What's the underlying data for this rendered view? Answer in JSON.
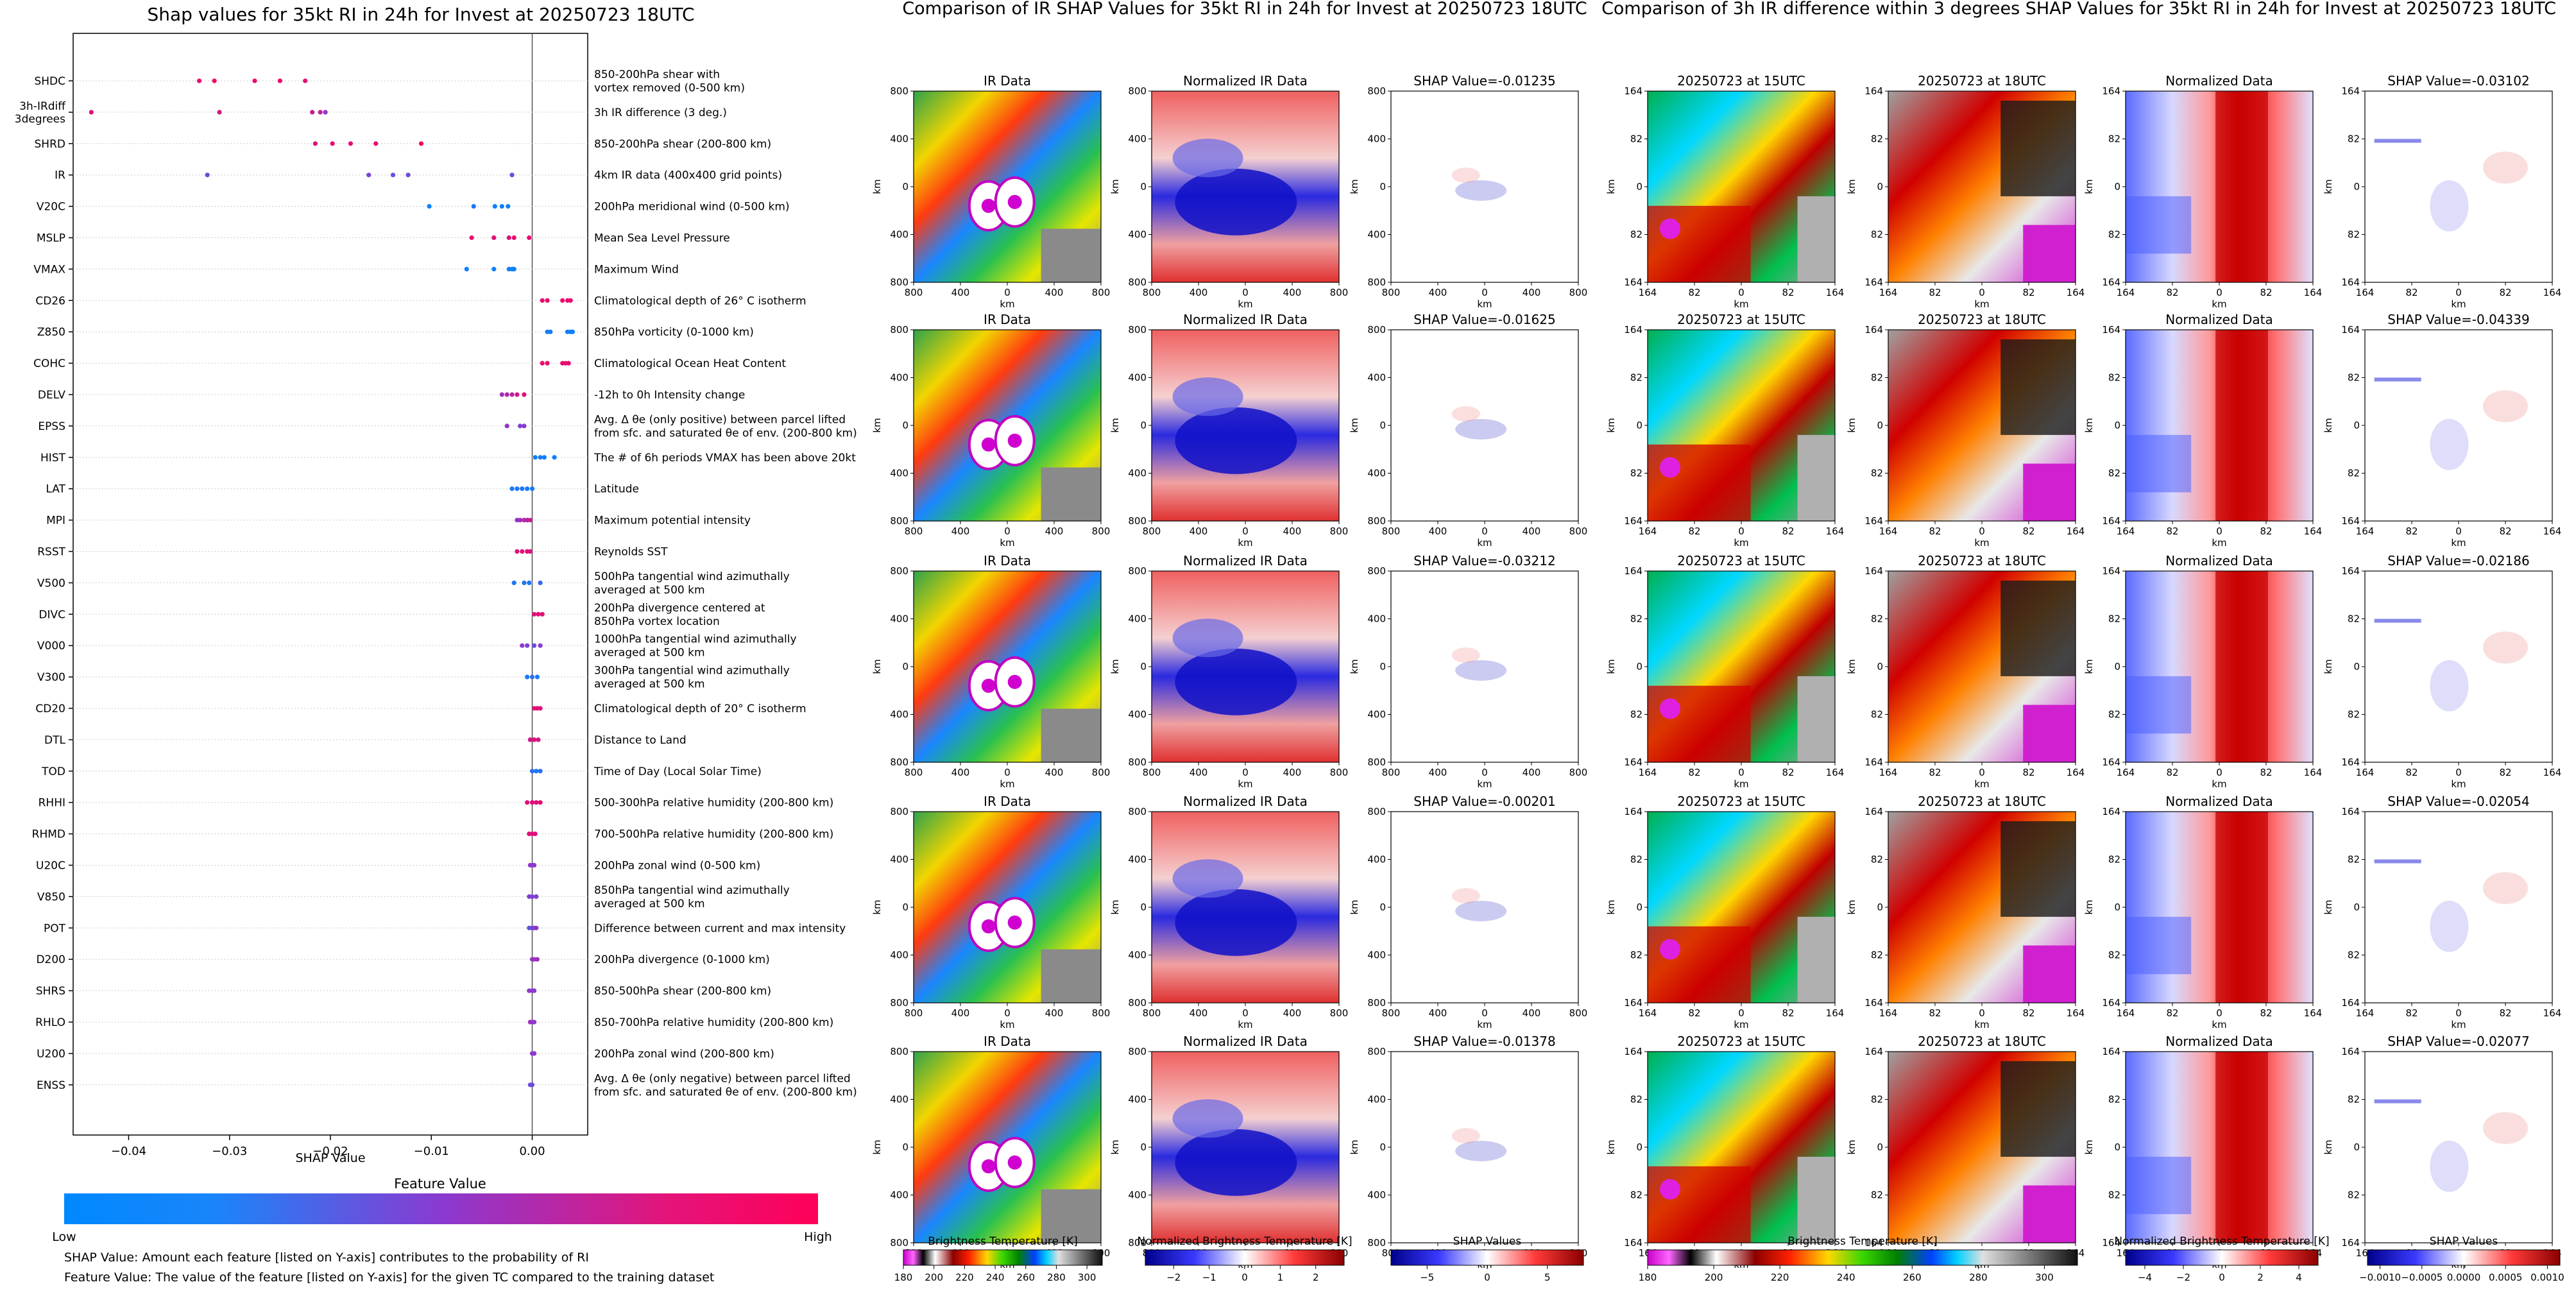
{
  "beeswarm": {
    "title": "Shap values for 35kt RI in 24h for Invest at 20250723 18UTC",
    "xlabel": "SHAP Value",
    "xlim": [
      -0.0455,
      0.0055
    ],
    "x_ticks": [
      "−0.04",
      "−0.03",
      "−0.02",
      "−0.01",
      "0.00"
    ],
    "colorbar_title": "Feature Value",
    "colorbar_low": "Low",
    "colorbar_high": "High",
    "note1": "SHAP Value: Amount each feature [listed on Y-axis] contributes to the probability of RI",
    "note2": "Feature Value: The value of the feature [listed on Y-axis] for the given TC compared to the training dataset"
  },
  "chart_data": [
    {
      "type": "scatter",
      "title": "Shap values for 35kt RI in 24h for Invest at 20250723 18UTC",
      "xlabel": "SHAP Value",
      "xlim": [
        -0.0455,
        0.0055
      ],
      "legend": "colorbar bottom: Feature Value, Low (blue) to High (pink)",
      "rows": [
        {
          "feature": "SHDC",
          "desc": [
            "850-200hPa shear with",
            "vortex removed (0-500 km)"
          ],
          "points": [
            [
              -0.033,
              0.9
            ],
            [
              -0.0315,
              0.95
            ],
            [
              -0.0275,
              0.9
            ],
            [
              -0.025,
              0.92
            ],
            [
              -0.0225,
              0.88
            ]
          ]
        },
        {
          "feature": "3h-IRdiff\n3degrees",
          "desc": [
            "3h IR difference (3 deg.)"
          ],
          "points": [
            [
              -0.0437,
              0.85
            ],
            [
              -0.031,
              0.8
            ],
            [
              -0.0218,
              0.75
            ],
            [
              -0.021,
              0.7
            ],
            [
              -0.0205,
              0.55
            ]
          ]
        },
        {
          "feature": "SHRD",
          "desc": [
            "850-200hPa shear (200-800 km)"
          ],
          "points": [
            [
              -0.0215,
              0.85
            ],
            [
              -0.0198,
              0.9
            ],
            [
              -0.018,
              0.88
            ],
            [
              -0.0155,
              0.9
            ],
            [
              -0.011,
              0.95
            ]
          ]
        },
        {
          "feature": "IR",
          "desc": [
            "4km IR data (400x400 grid points)"
          ],
          "points": [
            [
              -0.0322,
              0.4
            ],
            [
              -0.0162,
              0.45
            ],
            [
              -0.0138,
              0.35
            ],
            [
              -0.0123,
              0.4
            ],
            [
              -0.002,
              0.4
            ]
          ]
        },
        {
          "feature": "V20C",
          "desc": [
            "200hPa meridional wind (0-500 km)"
          ],
          "points": [
            [
              -0.0102,
              0.05
            ],
            [
              -0.0058,
              0.1
            ],
            [
              -0.0037,
              0.05
            ],
            [
              -0.003,
              0.05
            ],
            [
              -0.0024,
              0.05
            ]
          ]
        },
        {
          "feature": "MSLP",
          "desc": [
            "Mean Sea Level Pressure"
          ],
          "points": [
            [
              -0.006,
              0.9
            ],
            [
              -0.0038,
              0.88
            ],
            [
              -0.0023,
              0.85
            ],
            [
              -0.0018,
              0.9
            ],
            [
              -0.0003,
              0.88
            ]
          ]
        },
        {
          "feature": "VMAX",
          "desc": [
            "Maximum Wind"
          ],
          "points": [
            [
              -0.0065,
              0.05
            ],
            [
              -0.0038,
              0.05
            ],
            [
              -0.0023,
              0.05
            ],
            [
              -0.002,
              0.05
            ],
            [
              -0.0018,
              0.05
            ]
          ]
        },
        {
          "feature": "CD26",
          "desc": [
            "Climatological depth of 26° C isotherm"
          ],
          "points": [
            [
              0.001,
              0.92
            ],
            [
              0.0015,
              0.9
            ],
            [
              0.003,
              0.95
            ],
            [
              0.0035,
              0.92
            ],
            [
              0.0038,
              0.9
            ]
          ]
        },
        {
          "feature": "Z850",
          "desc": [
            "850hPa vorticity (0-1000 km)"
          ],
          "points": [
            [
              0.0015,
              0.05
            ],
            [
              0.0018,
              0.08
            ],
            [
              0.0035,
              0.05
            ],
            [
              0.0038,
              0.05
            ],
            [
              0.004,
              0.05
            ]
          ]
        },
        {
          "feature": "COHC",
          "desc": [
            "Climatological Ocean Heat Content"
          ],
          "points": [
            [
              0.001,
              0.92
            ],
            [
              0.0015,
              0.9
            ],
            [
              0.003,
              0.92
            ],
            [
              0.0033,
              0.88
            ],
            [
              0.0036,
              0.9
            ]
          ]
        },
        {
          "feature": "DELV",
          "desc": [
            "-12h to 0h Intensity change"
          ],
          "points": [
            [
              -0.003,
              0.6
            ],
            [
              -0.0025,
              0.65
            ],
            [
              -0.002,
              0.7
            ],
            [
              -0.0015,
              0.8
            ],
            [
              -0.0008,
              0.9
            ]
          ]
        },
        {
          "feature": "EPSS",
          "desc": [
            "Avg. Δ θe (only positive) between parcel lifted",
            "from sfc. and saturated θe of env. (200-800 km)"
          ],
          "points": [
            [
              -0.0025,
              0.55
            ],
            [
              -0.0012,
              0.45
            ],
            [
              -0.0008,
              0.5
            ]
          ]
        },
        {
          "feature": "HIST",
          "desc": [
            "The # of 6h periods VMAX has been above 20kt"
          ],
          "points": [
            [
              0.0003,
              0.05
            ],
            [
              0.0008,
              0.08
            ],
            [
              0.0012,
              0.05
            ],
            [
              0.0022,
              0.05
            ]
          ]
        },
        {
          "feature": "LAT",
          "desc": [
            "Latitude"
          ],
          "points": [
            [
              -0.002,
              0.1
            ],
            [
              -0.0015,
              0.12
            ],
            [
              -0.001,
              0.1
            ],
            [
              -0.0005,
              0.08
            ],
            [
              0.0,
              0.1
            ]
          ]
        },
        {
          "feature": "MPI",
          "desc": [
            "Maximum potential intensity"
          ],
          "points": [
            [
              -0.0015,
              0.55
            ],
            [
              -0.0012,
              0.6
            ],
            [
              -0.0008,
              0.65
            ],
            [
              -0.0005,
              0.7
            ],
            [
              -0.0002,
              0.75
            ]
          ]
        },
        {
          "feature": "RSST",
          "desc": [
            "Reynolds SST"
          ],
          "points": [
            [
              -0.0015,
              0.85
            ],
            [
              -0.001,
              0.88
            ],
            [
              -0.0005,
              0.9
            ],
            [
              -0.0002,
              0.85
            ]
          ]
        },
        {
          "feature": "V500",
          "desc": [
            "500hPa tangential wind azimuthally",
            "averaged at 500 km"
          ],
          "points": [
            [
              -0.0018,
              0.1
            ],
            [
              -0.0008,
              0.15
            ],
            [
              -0.0003,
              0.1
            ],
            [
              0.0008,
              0.2
            ]
          ]
        },
        {
          "feature": "DIVC",
          "desc": [
            "200hPa divergence centered at",
            "850hPa vortex location"
          ],
          "points": [
            [
              0.0002,
              0.85
            ],
            [
              0.0006,
              0.9
            ],
            [
              0.001,
              0.85
            ]
          ]
        },
        {
          "feature": "V000",
          "desc": [
            "1000hPa tangential wind azimuthally",
            "averaged at 500 km"
          ],
          "points": [
            [
              -0.001,
              0.5
            ],
            [
              -0.0005,
              0.45
            ],
            [
              0.0002,
              0.4
            ],
            [
              0.0008,
              0.5
            ]
          ]
        },
        {
          "feature": "V300",
          "desc": [
            "300hPa tangential wind azimuthally",
            "averaged at 500 km"
          ],
          "points": [
            [
              -0.0005,
              0.1
            ],
            [
              0.0,
              0.15
            ],
            [
              0.0005,
              0.1
            ]
          ]
        },
        {
          "feature": "CD20",
          "desc": [
            "Climatological depth of 20° C isotherm"
          ],
          "points": [
            [
              0.0002,
              0.85
            ],
            [
              0.0005,
              0.9
            ],
            [
              0.0008,
              0.85
            ]
          ]
        },
        {
          "feature": "DTL",
          "desc": [
            "Distance to Land"
          ],
          "points": [
            [
              -0.0002,
              0.8
            ],
            [
              0.0002,
              0.85
            ],
            [
              0.0006,
              0.8
            ]
          ]
        },
        {
          "feature": "TOD",
          "desc": [
            "Time of Day (Local Solar Time)"
          ],
          "points": [
            [
              0.0,
              0.15
            ],
            [
              0.0004,
              0.1
            ],
            [
              0.0008,
              0.15
            ]
          ]
        },
        {
          "feature": "RHHI",
          "desc": [
            "500-300hPa relative humidity (200-800 km)"
          ],
          "points": [
            [
              -0.0005,
              0.85
            ],
            [
              0.0,
              0.88
            ],
            [
              0.0004,
              0.85
            ],
            [
              0.0008,
              0.9
            ]
          ]
        },
        {
          "feature": "RHMD",
          "desc": [
            "700-500hPa relative humidity (200-800 km)"
          ],
          "points": [
            [
              -0.0003,
              0.85
            ],
            [
              0.0,
              0.88
            ],
            [
              0.0003,
              0.85
            ]
          ]
        },
        {
          "feature": "U20C",
          "desc": [
            "200hPa zonal wind (0-500 km)"
          ],
          "points": [
            [
              -0.0002,
              0.5
            ],
            [
              0.0,
              0.55
            ],
            [
              0.0002,
              0.5
            ]
          ]
        },
        {
          "feature": "V850",
          "desc": [
            "850hPa tangential wind azimuthally",
            "averaged at 500 km"
          ],
          "points": [
            [
              -0.0003,
              0.45
            ],
            [
              0.0,
              0.5
            ],
            [
              0.0004,
              0.45
            ]
          ]
        },
        {
          "feature": "POT",
          "desc": [
            "Difference between current and max intensity"
          ],
          "points": [
            [
              -0.0003,
              0.3
            ],
            [
              0.0,
              0.4
            ],
            [
              0.0002,
              0.55
            ],
            [
              0.0004,
              0.5
            ]
          ]
        },
        {
          "feature": "D200",
          "desc": [
            "200hPa divergence (0-1000 km)"
          ],
          "points": [
            [
              0.0,
              0.5
            ],
            [
              0.0002,
              0.55
            ],
            [
              0.0005,
              0.6
            ]
          ]
        },
        {
          "feature": "SHRS",
          "desc": [
            "850-500hPa shear (200-800 km)"
          ],
          "points": [
            [
              -0.0003,
              0.5
            ],
            [
              0.0,
              0.55
            ],
            [
              0.0002,
              0.5
            ]
          ]
        },
        {
          "feature": "RHLO",
          "desc": [
            "850-700hPa relative humidity (200-800 km)"
          ],
          "points": [
            [
              -0.0002,
              0.55
            ],
            [
              0.0,
              0.6
            ],
            [
              0.0002,
              0.5
            ]
          ]
        },
        {
          "feature": "U200",
          "desc": [
            "200hPa zonal wind (200-800 km)"
          ],
          "points": [
            [
              0.0,
              0.5
            ],
            [
              0.0002,
              0.5
            ]
          ]
        },
        {
          "feature": "ENSS",
          "desc": [
            "Avg. Δ θe (only negative) between parcel lifted",
            "from sfc. and saturated θe of env. (200-800 km)"
          ],
          "points": [
            [
              -0.0002,
              0.4
            ],
            [
              0.0,
              0.4
            ]
          ]
        }
      ]
    },
    {
      "type": "heatmap",
      "title": "Comparison of IR SHAP Values for 35kt RI in 24h for Invest at 20250723 18UTC",
      "column_titles": [
        "IR Data",
        "Normalized IR Data"
      ],
      "shap_titles": [
        "SHAP Value=-0.01235",
        "SHAP Value=-0.01625",
        "SHAP Value=-0.03212",
        "SHAP Value=-0.00201",
        "SHAP Value=-0.01378"
      ],
      "axis_label": "km",
      "ticks": [
        "800",
        "400",
        "0",
        "400",
        "800"
      ],
      "colorbars": [
        {
          "label": "Brightness Temperature [K]",
          "ticks": [
            "180",
            "200",
            "220",
            "240",
            "260",
            "280",
            "300"
          ],
          "range": [
            180,
            310
          ]
        },
        {
          "label": "Normalized Brightness Temperature [K]",
          "ticks": [
            "−2",
            "−1",
            "0",
            "1",
            "2"
          ],
          "range": [
            -2.8,
            2.8
          ]
        },
        {
          "label": "SHAP Values",
          "ticks": [
            "−5",
            "0",
            "5"
          ],
          "range": [
            -8,
            8
          ],
          "offset": "1e−5"
        }
      ]
    },
    {
      "type": "heatmap",
      "title": "Comparison of 3h IR difference within 3 degrees SHAP Values for 35kt RI in 24h for Invest at 20250723 18UTC",
      "column_titles": [
        "20250723 at 15UTC",
        "20250723 at 18UTC",
        "Normalized Data"
      ],
      "shap_titles": [
        "SHAP Value=-0.03102",
        "SHAP Value=-0.04339",
        "SHAP Value=-0.02186",
        "SHAP Value=-0.02054",
        "SHAP Value=-0.02077"
      ],
      "axis_label": "km",
      "ticks": [
        "164",
        "82",
        "0",
        "82",
        "164"
      ],
      "colorbars": [
        {
          "label": "Brightness Temperature [K]",
          "ticks": [
            "180",
            "200",
            "220",
            "240",
            "260",
            "280",
            "300"
          ],
          "range": [
            180,
            310
          ]
        },
        {
          "label": "Normalized Brightness Temperature [K]",
          "ticks": [
            "−4",
            "−2",
            "0",
            "2",
            "4"
          ],
          "range": [
            -5,
            5
          ]
        },
        {
          "label": "SHAP Values",
          "ticks": [
            "−0.0010",
            "−0.0005",
            "0.0000",
            "0.0005",
            "0.0010"
          ],
          "range": [
            -0.00115,
            0.00115
          ]
        }
      ]
    }
  ],
  "colors": {
    "shap_low": "#0088ff",
    "shap_high": "#ff0058",
    "shap_mid": "#8a3ad0"
  }
}
